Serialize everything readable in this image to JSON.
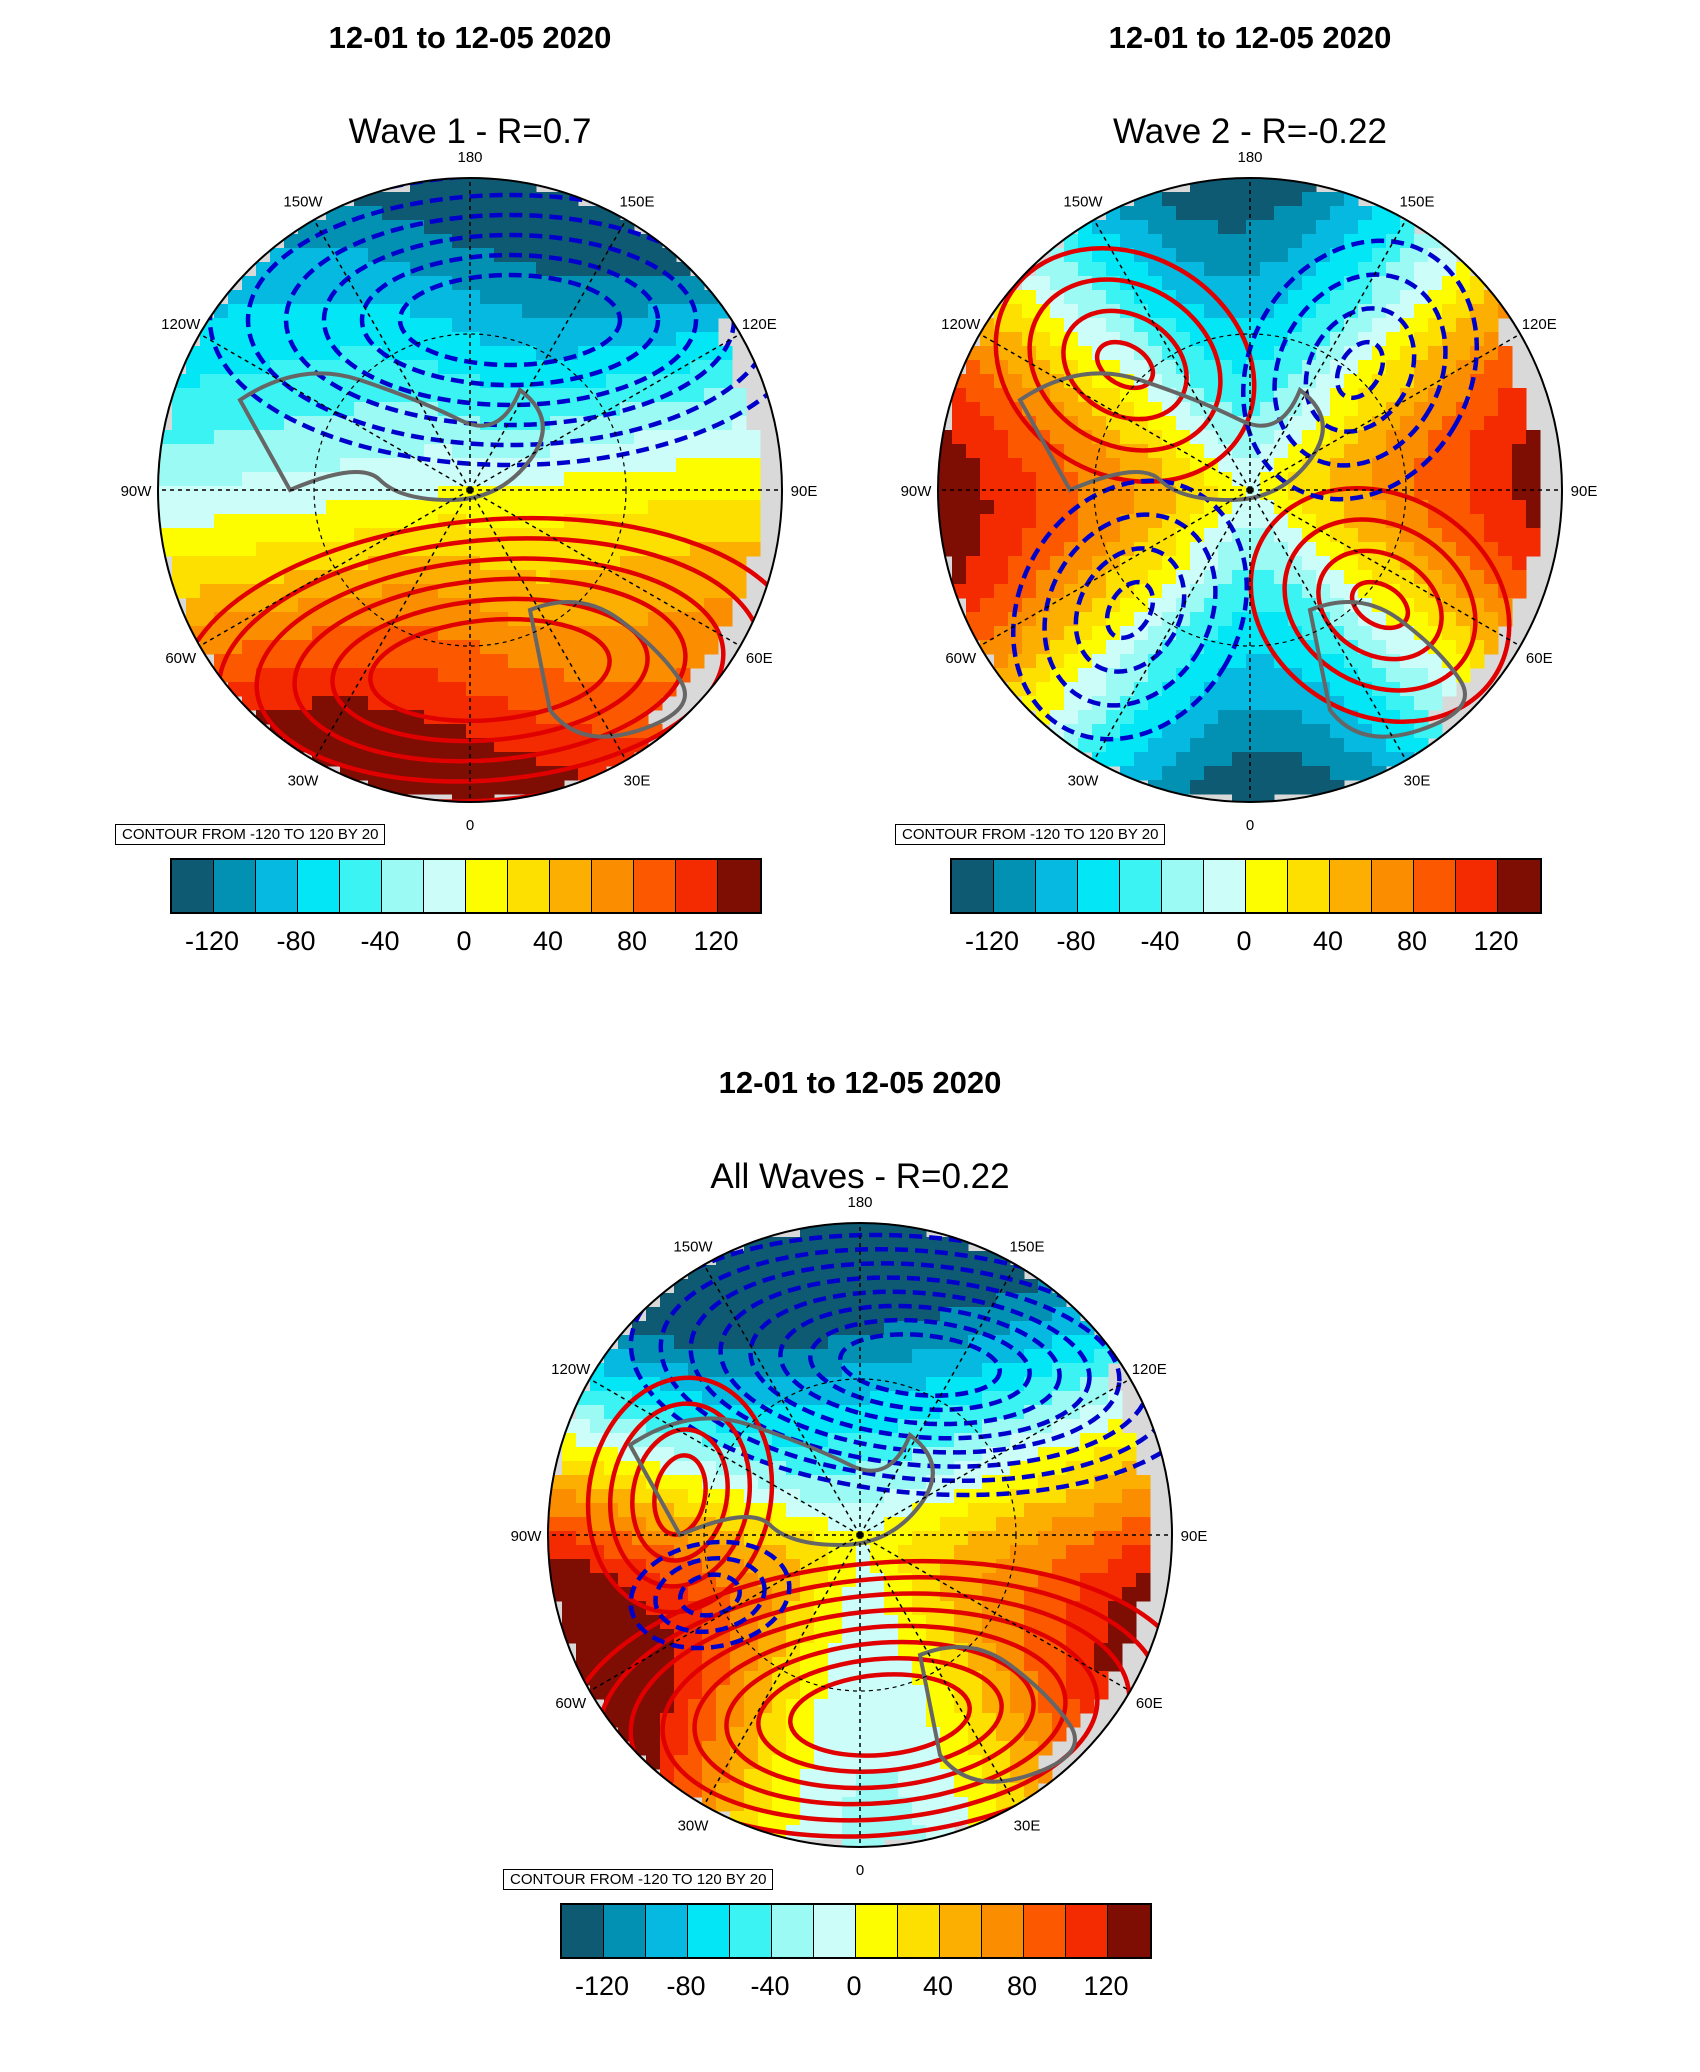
{
  "panels": [
    {
      "title": "12-01 to 12-05 2020",
      "subtitle": "Wave 1 - R=0.7",
      "contour_note": "CONTOUR FROM -120 TO 120 BY 20",
      "pattern": "wave1"
    },
    {
      "title": "12-01 to 12-05 2020",
      "subtitle": "Wave 2 - R=-0.22",
      "contour_note": "CONTOUR FROM -120 TO 120 BY 20",
      "pattern": "wave2"
    },
    {
      "title": "12-01 to 12-05 2020",
      "subtitle": "All Waves - R=0.22",
      "contour_note": "CONTOUR FROM -120 TO 120 BY 20",
      "pattern": "all"
    }
  ],
  "longitude_labels": [
    "180",
    "150E",
    "120E",
    "90E",
    "60E",
    "30E",
    "0",
    "30W",
    "60W",
    "90W",
    "120W",
    "150W"
  ],
  "colorbar": {
    "colors": [
      "#0e5a73",
      "#0391b3",
      "#06b9e0",
      "#02e6f6",
      "#3af3f2",
      "#9cfaf5",
      "#ccfdf8",
      "#fdfd00",
      "#fde000",
      "#fcaf00",
      "#fb8e00",
      "#fc5800",
      "#f42b00",
      "#7e0d04"
    ],
    "tick_labels": [
      "-120",
      "-80",
      "-40",
      "0",
      "40",
      "80",
      "120"
    ]
  },
  "colors": {
    "positive_contour": "#e00000",
    "negative_contour": "#0000cc",
    "land_outline": "#666666",
    "missing": "#d9d9d9"
  }
}
